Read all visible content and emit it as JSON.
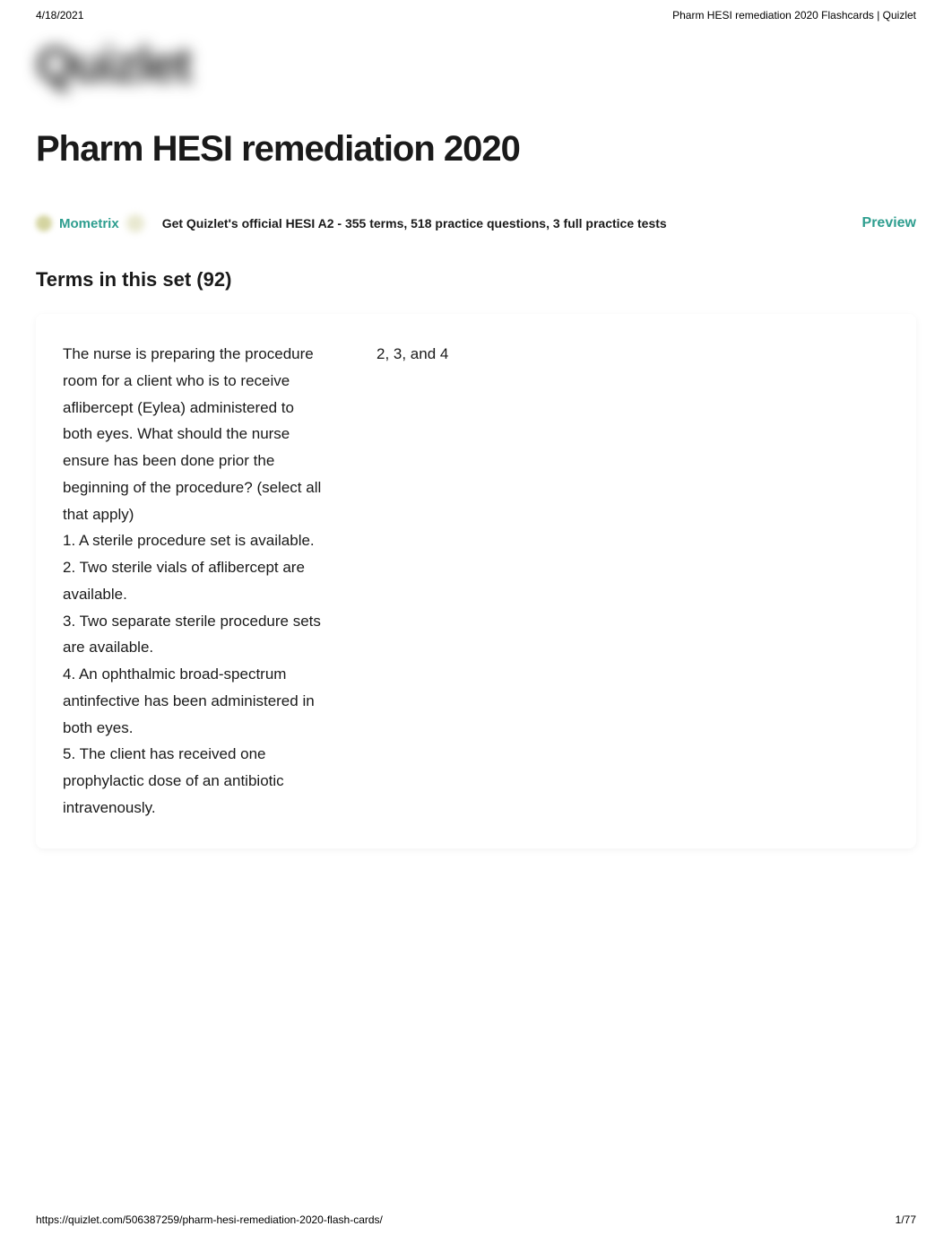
{
  "meta": {
    "date": "4/18/2021",
    "pageTitle": "Pharm HESI remediation 2020 Flashcards | Quizlet",
    "logo": "Quizlet"
  },
  "content": {
    "title": "Pharm HESI remediation 2020",
    "termsHeader": "Terms in this set (92)"
  },
  "promo": {
    "brandLabel": "Mometrix",
    "text": "Get Quizlet's official HESI A2 - 355 terms, 518 practice questions, 3 full practice tests",
    "previewLabel": "Preview"
  },
  "card": {
    "term": "The nurse is preparing the procedure room for a client who is to receive aflibercept (Eylea) administered to both eyes. What should the nurse ensure has been done prior the beginning of the procedure? (select all that apply)\n1. A sterile procedure set is available.\n2. Two sterile vials of aflibercept are available.\n3. Two separate sterile procedure sets are available.\n4. An ophthalmic broad-spectrum antinfective has been administered in both eyes.\n5. The client has received one prophylactic dose of an antibiotic intravenously.",
    "definition": "2, 3, and 4"
  },
  "footer": {
    "url": "https://quizlet.com/506387259/pharm-hesi-remediation-2020-flash-cards/",
    "pageNumber": "1/77"
  },
  "colors": {
    "brandTeal": "#2e9e8f",
    "textPrimary": "#1a1a1a",
    "background": "#ffffff",
    "blurredDot": "#d4d4a0"
  },
  "typography": {
    "titleFontSize": 40,
    "bodyFontSize": 17,
    "metaFontSize": 12,
    "termsHeaderFontSize": 22
  }
}
